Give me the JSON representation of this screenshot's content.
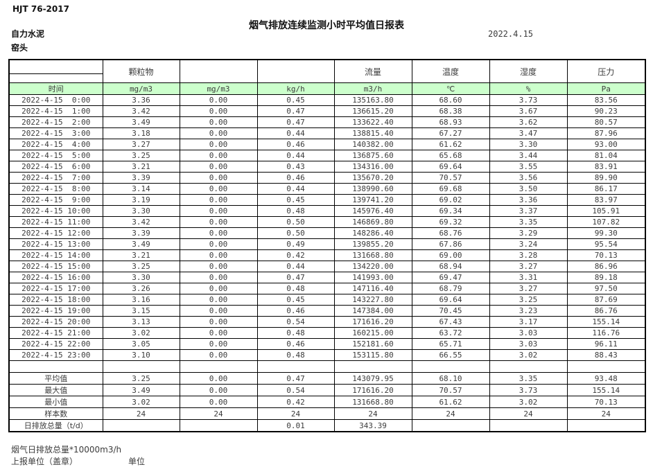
{
  "meta": {
    "standard": "HJT  76-2017",
    "title": "烟气排放连续监测小时平均值日报表",
    "date": "2022.4.15",
    "company": "自力水泥",
    "location": "窑头"
  },
  "colors": {
    "unit_row_bg": "#ccffcc",
    "border": "#000000",
    "text": "#3b3b3b"
  },
  "table": {
    "group_headers": [
      "",
      "颗粒物",
      "",
      "",
      "流量",
      "温度",
      "湿度",
      "压力"
    ],
    "unit_row": [
      "时间",
      "mg/m3",
      "mg/m3",
      "kg/h",
      "m3/h",
      "℃",
      "%",
      "Pa"
    ],
    "rows": [
      [
        "2022-4-15  0:00",
        "3.36",
        "0.00",
        "0.45",
        "135163.80",
        "68.60",
        "3.73",
        "83.56"
      ],
      [
        "2022-4-15  1:00",
        "3.42",
        "0.00",
        "0.47",
        "136615.20",
        "68.38",
        "3.67",
        "90.23"
      ],
      [
        "2022-4-15  2:00",
        "3.49",
        "0.00",
        "0.47",
        "133622.40",
        "68.93",
        "3.62",
        "80.57"
      ],
      [
        "2022-4-15  3:00",
        "3.18",
        "0.00",
        "0.44",
        "138815.40",
        "67.27",
        "3.47",
        "87.96"
      ],
      [
        "2022-4-15  4:00",
        "3.27",
        "0.00",
        "0.46",
        "140382.00",
        "61.62",
        "3.30",
        "93.00"
      ],
      [
        "2022-4-15  5:00",
        "3.25",
        "0.00",
        "0.44",
        "136875.60",
        "65.68",
        "3.44",
        "81.04"
      ],
      [
        "2022-4-15  6:00",
        "3.21",
        "0.00",
        "0.43",
        "134316.00",
        "69.64",
        "3.55",
        "83.91"
      ],
      [
        "2022-4-15  7:00",
        "3.39",
        "0.00",
        "0.46",
        "135670.20",
        "70.57",
        "3.56",
        "89.90"
      ],
      [
        "2022-4-15  8:00",
        "3.14",
        "0.00",
        "0.44",
        "138990.60",
        "69.68",
        "3.50",
        "86.17"
      ],
      [
        "2022-4-15  9:00",
        "3.19",
        "0.00",
        "0.45",
        "139741.20",
        "69.02",
        "3.36",
        "83.97"
      ],
      [
        "2022-4-15 10:00",
        "3.30",
        "0.00",
        "0.48",
        "145976.40",
        "69.34",
        "3.37",
        "105.91"
      ],
      [
        "2022-4-15 11:00",
        "3.42",
        "0.00",
        "0.50",
        "146869.80",
        "69.32",
        "3.35",
        "107.82"
      ],
      [
        "2022-4-15 12:00",
        "3.39",
        "0.00",
        "0.50",
        "148286.40",
        "68.76",
        "3.29",
        "99.30"
      ],
      [
        "2022-4-15 13:00",
        "3.49",
        "0.00",
        "0.49",
        "139855.20",
        "67.86",
        "3.24",
        "95.54"
      ],
      [
        "2022-4-15 14:00",
        "3.21",
        "0.00",
        "0.42",
        "131668.80",
        "69.00",
        "3.28",
        "70.13"
      ],
      [
        "2022-4-15 15:00",
        "3.25",
        "0.00",
        "0.44",
        "134220.00",
        "68.94",
        "3.27",
        "86.96"
      ],
      [
        "2022-4-15 16:00",
        "3.30",
        "0.00",
        "0.47",
        "141993.00",
        "69.47",
        "3.31",
        "89.18"
      ],
      [
        "2022-4-15 17:00",
        "3.26",
        "0.00",
        "0.48",
        "147116.40",
        "68.79",
        "3.27",
        "97.50"
      ],
      [
        "2022-4-15 18:00",
        "3.16",
        "0.00",
        "0.45",
        "143227.80",
        "69.64",
        "3.25",
        "87.69"
      ],
      [
        "2022-4-15 19:00",
        "3.15",
        "0.00",
        "0.46",
        "147384.00",
        "70.45",
        "3.23",
        "86.76"
      ],
      [
        "2022-4-15 20:00",
        "3.13",
        "0.00",
        "0.54",
        "171616.20",
        "67.43",
        "3.17",
        "155.14"
      ],
      [
        "2022-4-15 21:00",
        "3.02",
        "0.00",
        "0.48",
        "160215.00",
        "63.72",
        "3.03",
        "116.76"
      ],
      [
        "2022-4-15 22:00",
        "3.05",
        "0.00",
        "0.46",
        "152181.60",
        "65.71",
        "3.03",
        "96.11"
      ],
      [
        "2022-4-15 23:00",
        "3.10",
        "0.00",
        "0.48",
        "153115.80",
        "66.55",
        "3.02",
        "88.43"
      ]
    ],
    "summary_rows": [
      [
        "平均值",
        "3.25",
        "0.00",
        "0.47",
        "143079.95",
        "68.10",
        "3.35",
        "93.48"
      ],
      [
        "最大值",
        "3.49",
        "0.00",
        "0.54",
        "171616.20",
        "70.57",
        "3.73",
        "155.14"
      ],
      [
        "最小值",
        "3.02",
        "0.00",
        "0.42",
        "131668.80",
        "61.62",
        "3.02",
        "70.13"
      ],
      [
        "样本数",
        "24",
        "24",
        "24",
        "24",
        "24",
        "24",
        "24"
      ],
      [
        "日排放总量（t/d）",
        "",
        "",
        "0.01",
        "343.39",
        "",
        "",
        ""
      ]
    ]
  },
  "footer": {
    "note": "烟气日排放总量*10000m3/h",
    "report_unit": "上报单位（盖章）",
    "unit_label": "单位"
  }
}
